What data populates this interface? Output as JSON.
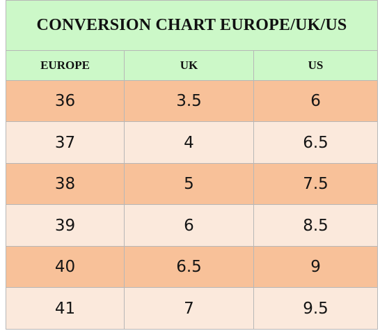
{
  "title": "CONVERSION CHART EUROPE/UK/US",
  "columns": [
    "EUROPE",
    "UK",
    "US"
  ],
  "rows": [
    [
      "36",
      "3.5",
      "6"
    ],
    [
      "37",
      "4",
      "6.5"
    ],
    [
      "38",
      "5",
      "7.5"
    ],
    [
      "39",
      "6",
      "8.5"
    ],
    [
      "40",
      "6.5",
      "9"
    ],
    [
      "41",
      "7",
      "9.5"
    ]
  ],
  "colors": {
    "header_bg": "#ccf8c8",
    "row_dark": "#f8c199",
    "row_light": "#fbe9dc",
    "border": "#b7b7b7"
  }
}
